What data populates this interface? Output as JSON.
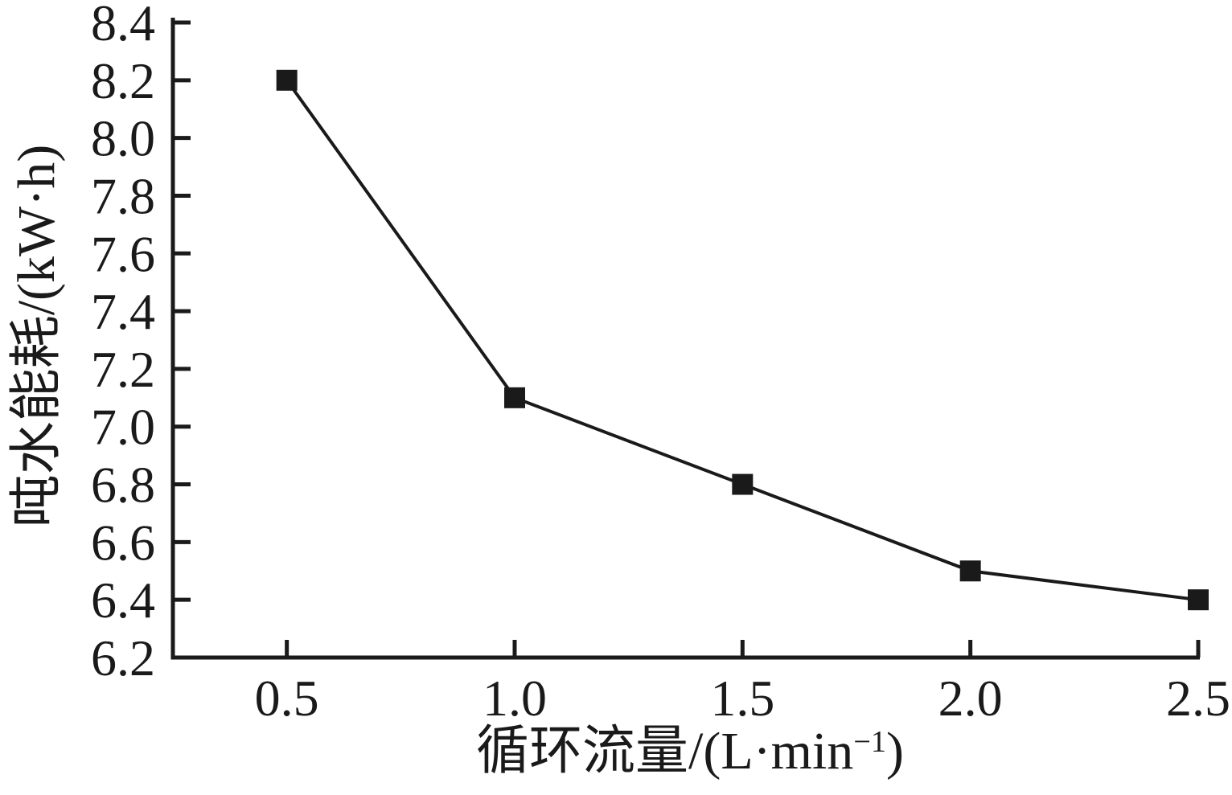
{
  "figure": {
    "background": "#ffffff",
    "ink_color": "#1a1a1a"
  },
  "chart_data": {
    "type": "line",
    "title": "",
    "x": [
      0.5,
      1.0,
      1.5,
      2.0,
      2.5
    ],
    "y": [
      8.2,
      7.1,
      6.8,
      6.5,
      6.4
    ],
    "marker": "filled-square",
    "marker_size_px": 26,
    "line_color": "#1a1a1a",
    "ylabel": "吨水能耗/(kW·h)",
    "xlabel_prefix": "循环流量/(L·min",
    "xlabel_sup": "−1",
    "xlabel_suffix": ")",
    "xlim": [
      0.25,
      2.5
    ],
    "ylim": [
      6.2,
      8.4
    ],
    "x_ticks": [
      "0.5",
      "1.0",
      "1.5",
      "2.0",
      "2.5"
    ],
    "y_ticks": [
      "6.2",
      "6.4",
      "6.6",
      "6.8",
      "7.0",
      "7.2",
      "7.4",
      "7.6",
      "7.8",
      "8.0",
      "8.2",
      "8.4"
    ],
    "grid": false,
    "legend": "none",
    "tick_direction": "in"
  }
}
